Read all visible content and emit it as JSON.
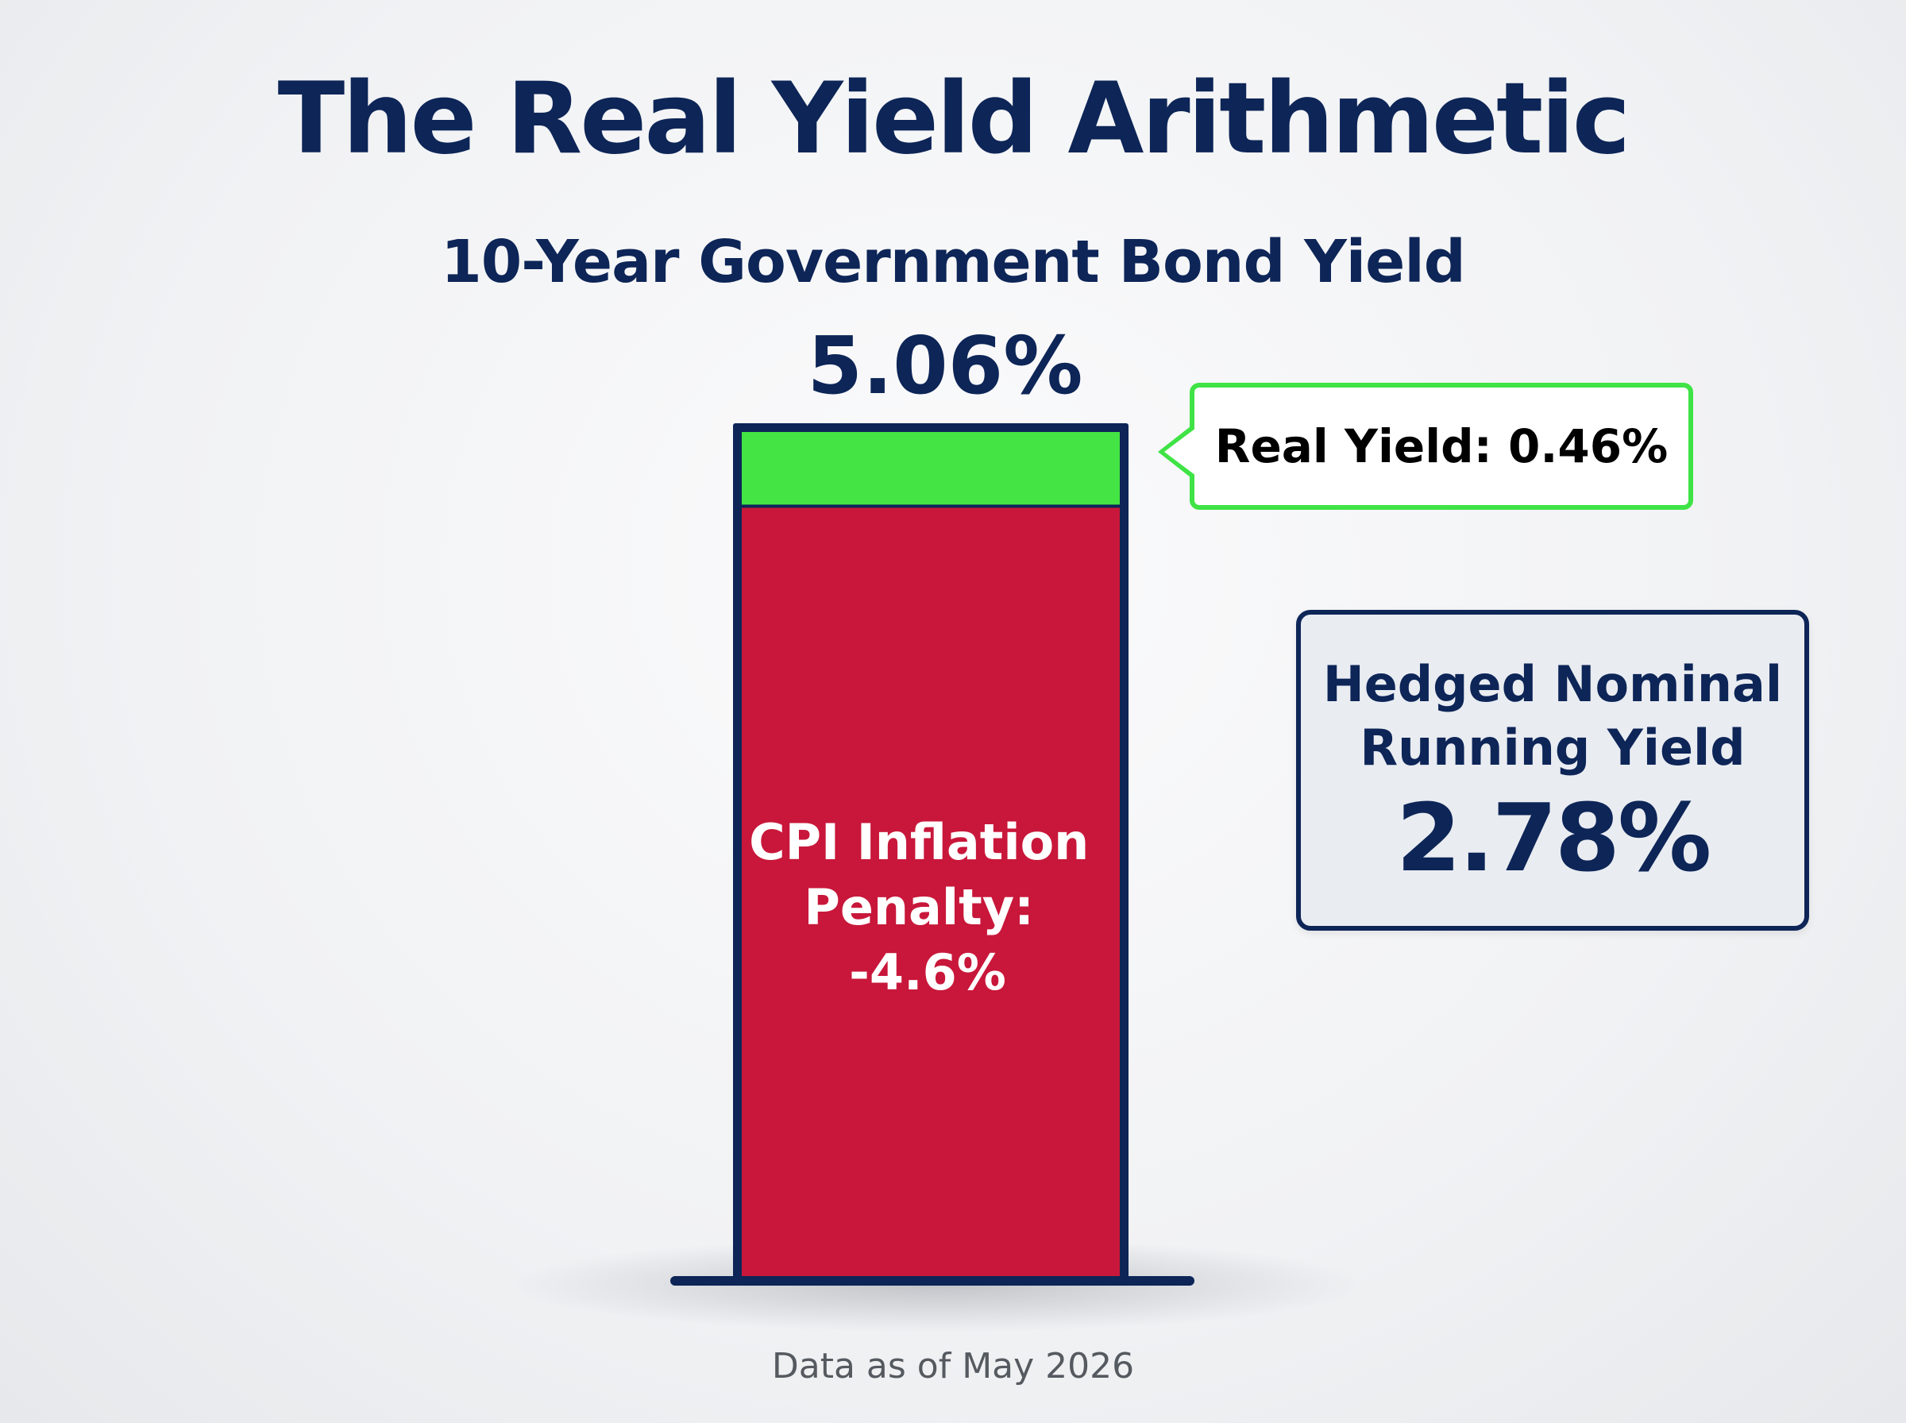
{
  "title": "The Real Yield Arithmetic",
  "footnote": "Data as of May 2026",
  "info_box": {
    "label_line1": "Hedged Nominal",
    "label_line2": "Running Yield",
    "value": "2.78%"
  },
  "colors": {
    "navy": "#0d2557",
    "real_yield_green": "#44e444",
    "inflation_red": "#c8173a",
    "callout_border_green": "#3fe345"
  },
  "chart_data": {
    "type": "bar",
    "subtitle": "10-Year Government Bond Yield",
    "categories": [
      ""
    ],
    "total_value": 5.06,
    "total_label": "5.06%",
    "series": [
      {
        "name": "CPI Inflation Penalty",
        "value": 4.6,
        "label_lines": [
          "CPI Inflation",
          "Penalty:",
          "-4.6%"
        ],
        "color": "#c8173a"
      },
      {
        "name": "Real Yield",
        "value": 0.46,
        "label": "Real Yield: 0.46%",
        "color": "#44e444"
      }
    ],
    "ylim": [
      0,
      5.06
    ]
  }
}
